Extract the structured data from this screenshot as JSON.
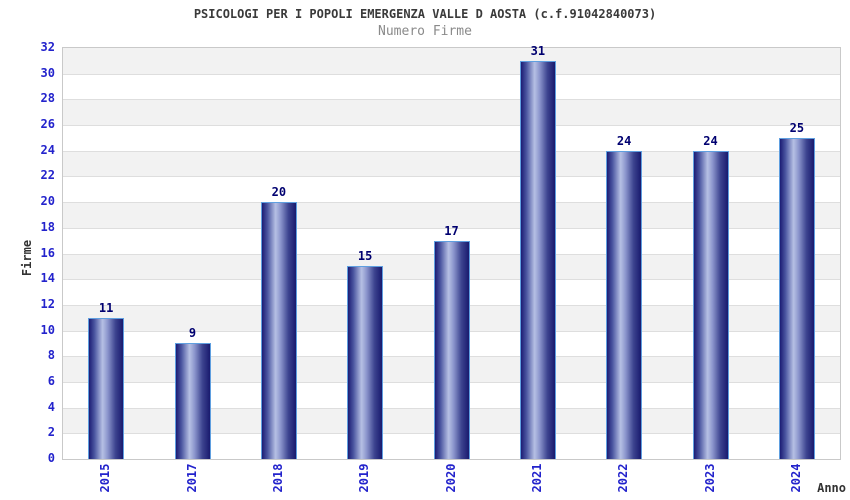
{
  "chart_data": {
    "type": "bar",
    "title": "PSICOLOGI PER I POPOLI EMERGENZA VALLE D AOSTA (c.f.91042840073)",
    "subtitle": "Numero Firme",
    "xlabel": "Anno",
    "ylabel": "Firme",
    "categories": [
      "2015",
      "2017",
      "2018",
      "2019",
      "2020",
      "2021",
      "2022",
      "2023",
      "2024"
    ],
    "values": [
      11,
      9,
      20,
      15,
      17,
      31,
      24,
      24,
      25
    ],
    "ylim": [
      0,
      32
    ],
    "ytick_step": 2,
    "grid": "horizontal gridlines with alternating gray/white bands",
    "legend": "none",
    "colors": {
      "bar_edge_dark": "#1c1c74",
      "bar_highlight": "#b6c0e4",
      "bar_border": "#5f9fe0",
      "tick_label": "#2323cc",
      "value_label": "#000070",
      "band_gray": "#f2f2f2",
      "band_white": "#ffffff",
      "gridline": "#dedede",
      "plot_border": "#c9c9c9",
      "title_text": "#3a3a3a",
      "subtitle_text": "#8a8a8a",
      "axis_title_text": "#333333"
    }
  }
}
